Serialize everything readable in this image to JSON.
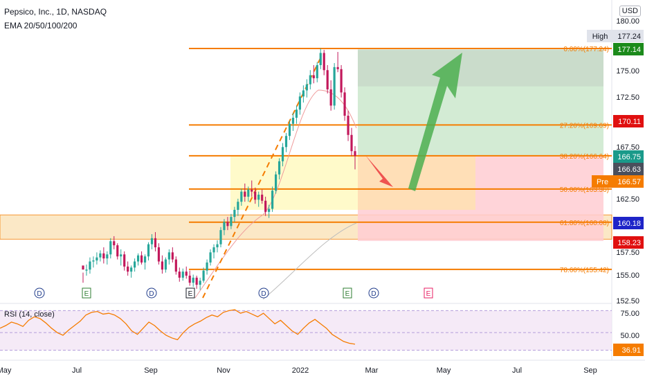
{
  "header": {
    "title": "Pepsico, Inc., 1D, NASDAQ",
    "indicator": "EMA 20/50/100/200",
    "currency": "USD"
  },
  "rsi": {
    "title": "RSI (14, close)",
    "current": "36.91",
    "levels": [
      "75.00",
      "50.00"
    ]
  },
  "colors": {
    "orange": "#f57c00",
    "green": "#4caf50",
    "red": "#ef5350",
    "candle_up": "#26a69a",
    "candle_down": "#c2185b"
  },
  "chart_data": {
    "type": "candlestick",
    "price_axis": {
      "ticks": [
        "180.00",
        "177.24",
        "175.00",
        "172.50",
        "170.11",
        "167.50",
        "166.75",
        "166.63",
        "166.57",
        "162.50",
        "160.18",
        "158.23",
        "157.50",
        "155.00",
        "152.50"
      ]
    },
    "time_axis": [
      "May",
      "Jul",
      "Sep",
      "Nov",
      "2022",
      "Mar",
      "May",
      "Jul",
      "Sep"
    ],
    "price_labels": [
      {
        "text": "High",
        "value": "177.24",
        "style": "grey"
      },
      {
        "text": "",
        "value": "177.14",
        "style": "green"
      },
      {
        "text": "",
        "value": "170.11",
        "style": "red"
      },
      {
        "text": "",
        "value": "166.75",
        "style": "teal"
      },
      {
        "text": "",
        "value": "166.63",
        "style": "dark"
      },
      {
        "text": "Pre",
        "value": "166.57",
        "style": "orange"
      },
      {
        "text": "",
        "value": "160.18",
        "style": "blue"
      },
      {
        "text": "",
        "value": "158.23",
        "style": "red"
      }
    ],
    "fib_levels": [
      {
        "label": "0.00%(177.24)",
        "price": 177.24
      },
      {
        "label": "27.20%(169.69)",
        "price": 169.69
      },
      {
        "label": "38.20%(166.64)",
        "price": 166.64
      },
      {
        "label": "50.00%(163.36)",
        "price": 163.36
      },
      {
        "label": "61.80%(160.08)",
        "price": 160.08
      },
      {
        "label": "78.60%(155.42)",
        "price": 155.42
      }
    ],
    "events": [
      {
        "kind": "D",
        "date": "Jun",
        "color": "blue"
      },
      {
        "kind": "E",
        "date": "Jul",
        "color": "green"
      },
      {
        "kind": "D",
        "date": "Sep",
        "color": "blue"
      },
      {
        "kind": "E",
        "date": "Oct",
        "color": "dark"
      },
      {
        "kind": "D",
        "date": "Dec",
        "color": "blue"
      },
      {
        "kind": "E",
        "date": "Feb",
        "color": "green"
      },
      {
        "kind": "D",
        "date": "Mar",
        "color": "blue"
      },
      {
        "kind": "E",
        "date": "Apr",
        "color": "pink"
      }
    ],
    "long_position": {
      "entry": 166.64,
      "target": 177.14,
      "stop": 158.23
    },
    "candles_ohlc": [
      [
        155.8,
        155.1,
        154.1,
        155.4
      ],
      [
        155.3,
        155.9,
        154.8,
        155.4
      ],
      [
        155.4,
        156.6,
        155,
        156.2
      ],
      [
        156.2,
        156.7,
        155.6,
        156.3
      ],
      [
        156.3,
        157.1,
        155.9,
        156.6
      ],
      [
        156.6,
        157.3,
        156.2,
        157
      ],
      [
        157,
        157.6,
        156,
        156.5
      ],
      [
        156.5,
        157.2,
        155.9,
        156.9
      ],
      [
        156.9,
        158.5,
        156.5,
        158.2
      ],
      [
        158.2,
        158.7,
        157.4,
        157.8
      ],
      [
        157.8,
        158,
        156.4,
        156.7
      ],
      [
        156.7,
        157.4,
        155.8,
        156.9
      ],
      [
        156.9,
        157.2,
        155.3,
        155.7
      ],
      [
        155.7,
        156.2,
        154.8,
        155.2
      ],
      [
        155.2,
        155.8,
        154.6,
        155.6
      ],
      [
        155.6,
        156.5,
        155.2,
        156.2
      ],
      [
        156.2,
        157,
        155.8,
        156.8
      ],
      [
        156.8,
        157.2,
        155.9,
        156.1
      ],
      [
        156.1,
        156.9,
        155.4,
        156.7
      ],
      [
        156.7,
        158.1,
        156.3,
        157.9
      ],
      [
        157.9,
        158.9,
        157.4,
        158.5
      ],
      [
        158.5,
        159.1,
        157.2,
        157.6
      ],
      [
        157.6,
        158,
        155.9,
        156.2
      ],
      [
        156.2,
        156.8,
        155,
        155.4
      ],
      [
        155.4,
        156.6,
        155.1,
        156.4
      ],
      [
        156.4,
        157.4,
        155.9,
        157.1
      ],
      [
        157.1,
        157.6,
        156.1,
        156.4
      ],
      [
        156.4,
        156.7,
        154.9,
        155.2
      ],
      [
        155.2,
        155.6,
        154.2,
        154.6
      ],
      [
        154.6,
        155.5,
        154.3,
        155.2
      ],
      [
        155.2,
        155.7,
        154.5,
        154.8
      ],
      [
        154.8,
        155.3,
        153.8,
        154.1
      ],
      [
        154.1,
        154.9,
        153.7,
        154.6
      ],
      [
        154.6,
        154.8,
        153.5,
        153.9
      ],
      [
        153.9,
        154.6,
        153.4,
        154.3
      ],
      [
        154.3,
        155.6,
        154.1,
        155.3
      ],
      [
        155.3,
        156.4,
        154.9,
        156.1
      ],
      [
        156.1,
        157.4,
        155.8,
        157.1
      ],
      [
        157.1,
        157.9,
        156.5,
        157.6
      ],
      [
        157.6,
        158.3,
        157.1,
        157.9
      ],
      [
        157.9,
        159.6,
        157.6,
        159.3
      ],
      [
        159.3,
        160.4,
        158.8,
        160.1
      ],
      [
        160.1,
        160.6,
        159.3,
        159.7
      ],
      [
        159.7,
        160.9,
        159.4,
        160.6
      ],
      [
        160.6,
        161.6,
        160.1,
        161.3
      ],
      [
        161.3,
        162.4,
        160.7,
        162.1
      ],
      [
        162.1,
        163.4,
        161.7,
        163.1
      ],
      [
        163.1,
        163.9,
        162.1,
        162.6
      ],
      [
        162.6,
        163.6,
        162.1,
        163.3
      ],
      [
        163.3,
        164.2,
        162.6,
        163.1
      ],
      [
        163.1,
        163.5,
        161.9,
        162.3
      ],
      [
        162.3,
        163.1,
        161.6,
        162.8
      ],
      [
        162.8,
        163.3,
        161.9,
        162.2
      ],
      [
        162.2,
        162.6,
        160.7,
        161.1
      ],
      [
        161.1,
        161.8,
        160.5,
        161.4
      ],
      [
        161.4,
        163.6,
        161.1,
        163.2
      ],
      [
        163.2,
        165.1,
        162.9,
        164.8
      ],
      [
        164.8,
        166.4,
        164.3,
        166.1
      ],
      [
        166.1,
        167.9,
        165.6,
        167.5
      ],
      [
        167.5,
        168.9,
        167,
        168.6
      ],
      [
        168.6,
        170.1,
        168.2,
        169.8
      ],
      [
        169.8,
        170.9,
        169.1,
        170.4
      ],
      [
        170.4,
        171.6,
        169.8,
        171.2
      ],
      [
        171.2,
        172.9,
        170.7,
        172.5
      ],
      [
        172.5,
        173.6,
        171.9,
        173.1
      ],
      [
        173.1,
        174.2,
        172.4,
        173.7
      ],
      [
        173.7,
        175.1,
        173.2,
        174.6
      ],
      [
        174.6,
        175.6,
        173.8,
        174.3
      ],
      [
        174.3,
        175.9,
        173.9,
        175.6
      ],
      [
        175.6,
        177.24,
        175.2,
        176.8
      ],
      [
        176.8,
        177.1,
        174.6,
        175.1
      ],
      [
        175.1,
        175.6,
        172.8,
        173.2
      ],
      [
        173.2,
        174.1,
        171.1,
        171.6
      ],
      [
        171.6,
        175.8,
        171.2,
        175.4
      ],
      [
        175.4,
        176.9,
        174.9,
        175.2
      ],
      [
        175.2,
        175.6,
        172.4,
        172.9
      ],
      [
        172.9,
        173.4,
        170.1,
        170.6
      ],
      [
        170.6,
        171.1,
        168.1,
        168.7
      ],
      [
        168.7,
        169.4,
        166.6,
        167.1
      ],
      [
        167.1,
        167.6,
        165.3,
        166.63
      ]
    ],
    "rsi_values": [
      55,
      58,
      62,
      60,
      57,
      64,
      68,
      66,
      61,
      55,
      50,
      47,
      53,
      58,
      63,
      70,
      73,
      74,
      71,
      72,
      70,
      66,
      60,
      52,
      48,
      55,
      62,
      58,
      52,
      47,
      44,
      42,
      50,
      56,
      60,
      63,
      67,
      70,
      68,
      73,
      75,
      76,
      72,
      74,
      71,
      68,
      72,
      66,
      60,
      64,
      58,
      52,
      48,
      55,
      61,
      65,
      60,
      55,
      48,
      44,
      40,
      38,
      36.91
    ],
    "rsi_ylim": [
      25,
      80
    ]
  }
}
